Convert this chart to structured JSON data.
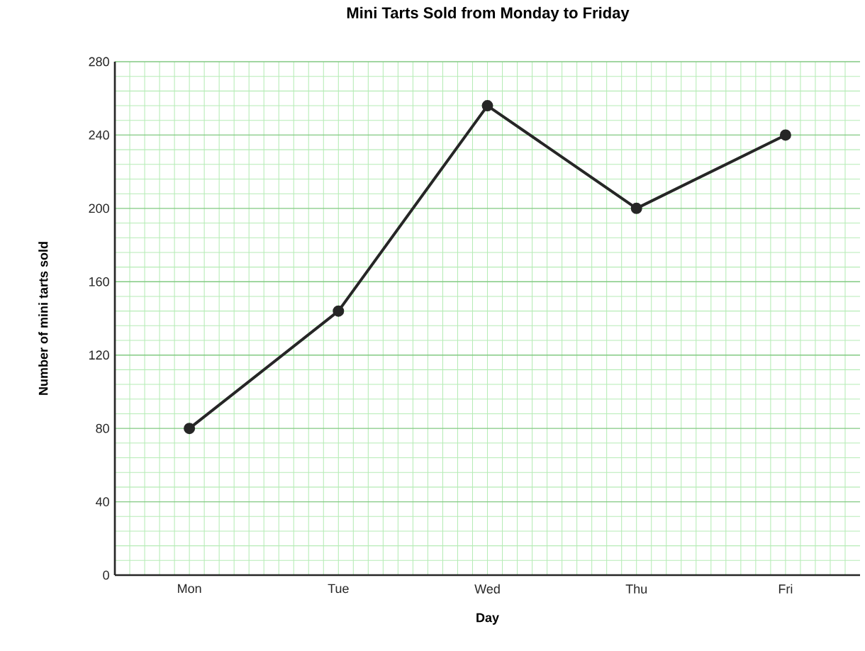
{
  "chart_data": {
    "type": "line",
    "title": "Mini Tarts Sold from Monday to Friday",
    "xlabel": "Day",
    "ylabel": "Number of mini tarts sold",
    "categories": [
      "Mon",
      "Tue",
      "Wed",
      "Thu",
      "Fri"
    ],
    "series": [
      {
        "color": "#262626",
        "values": [
          80,
          144,
          256,
          200,
          240
        ]
      }
    ],
    "ylim": [
      0,
      280
    ],
    "yticks": [
      0,
      40,
      80,
      120,
      160,
      200,
      240,
      280
    ],
    "grid": true,
    "marker": "circle",
    "line_style": "solid"
  }
}
